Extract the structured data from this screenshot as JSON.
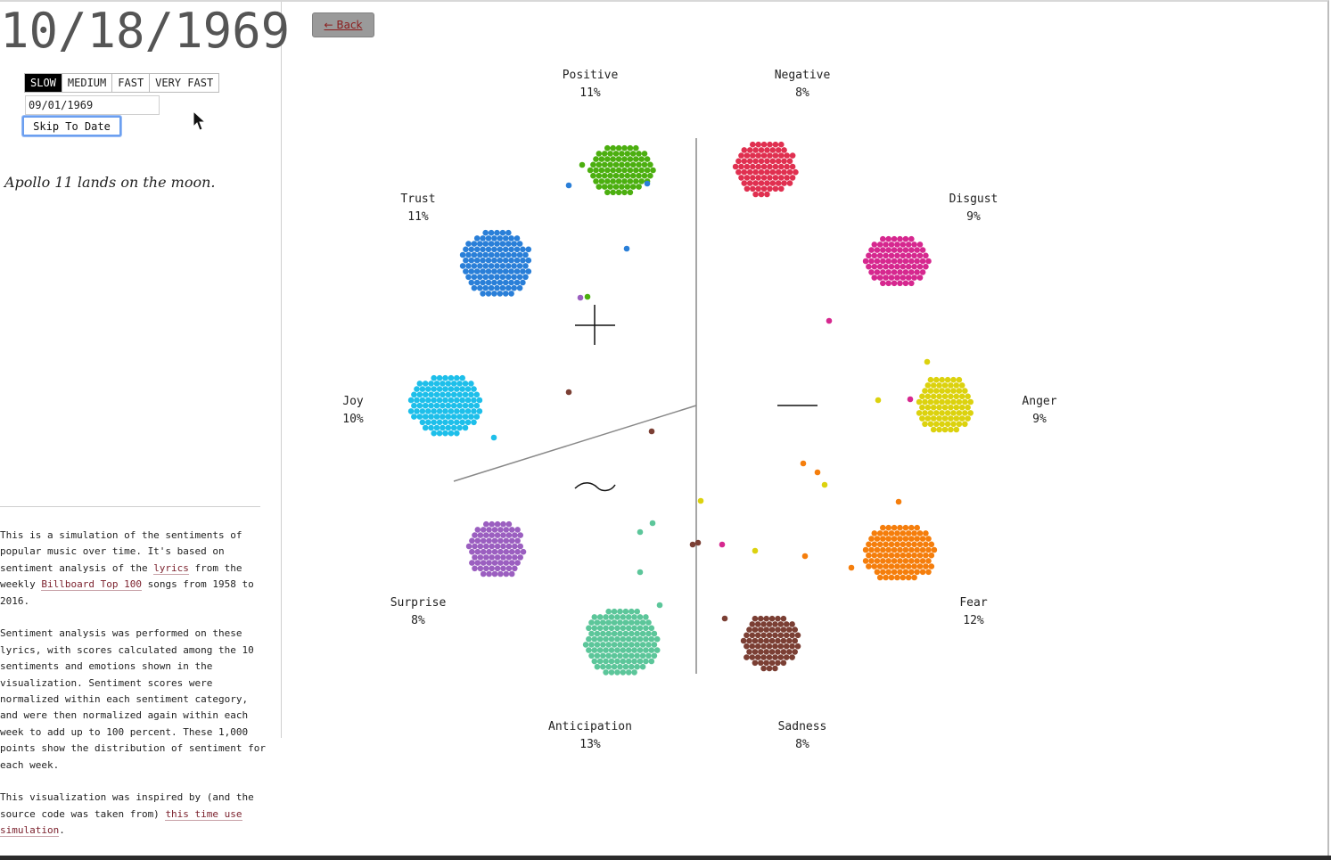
{
  "date": "10/18/1969",
  "speeds": [
    {
      "label": "SLOW",
      "active": true
    },
    {
      "label": "MEDIUM",
      "active": false
    },
    {
      "label": "FAST",
      "active": false
    },
    {
      "label": "VERY FAST",
      "active": false
    }
  ],
  "skip": {
    "input_value": "09/01/1969",
    "button_label": "Skip To Date"
  },
  "event": "Apollo 11 lands on the moon.",
  "back_label": "← Back",
  "about": {
    "p1_a": "This is a simulation of the sentiments of popular music over time. It's based on sentiment analysis of the ",
    "p1_link1": "lyrics",
    "p1_b": " from the weekly ",
    "p1_link2": "Billboard Top 100",
    "p1_c": " songs from 1958 to 2016.",
    "p2": "Sentiment analysis was performed on these lyrics, with scores calculated among the 10 sentiments and emotions shown in the visualization. Sentiment scores were normalized within each sentiment category, and were then normalized again within each week to add up to 100 percent. These 1,000 points show the distribution of sentiment for each week.",
    "p3_a": "This visualization was inspired by (and the source code was taken from) ",
    "p3_link": "this time use simulation",
    "p3_b": "."
  },
  "categories": [
    {
      "key": "positive",
      "name": "Positive",
      "pct": "11%",
      "color": "#4caf10"
    },
    {
      "key": "negative",
      "name": "Negative",
      "pct": "8%",
      "color": "#e03050"
    },
    {
      "key": "trust",
      "name": "Trust",
      "pct": "11%",
      "color": "#2a7fd8"
    },
    {
      "key": "disgust",
      "name": "Disgust",
      "pct": "9%",
      "color": "#d6288f"
    },
    {
      "key": "joy",
      "name": "Joy",
      "pct": "10%",
      "color": "#1ebfea"
    },
    {
      "key": "anger",
      "name": "Anger",
      "pct": "9%",
      "color": "#dcd20e"
    },
    {
      "key": "surprise",
      "name": "Surprise",
      "pct": "8%",
      "color": "#9b5fc0"
    },
    {
      "key": "fear",
      "name": "Fear",
      "pct": "12%",
      "color": "#f57e0c"
    },
    {
      "key": "anticipation",
      "name": "Anticipation",
      "pct": "13%",
      "color": "#5cc69a"
    },
    {
      "key": "sadness",
      "name": "Sadness",
      "pct": "8%",
      "color": "#7b3f34"
    }
  ],
  "symbols": {
    "plus": "plus-symbol",
    "minus": "minus-symbol",
    "neutral": "tilde-symbol"
  }
}
